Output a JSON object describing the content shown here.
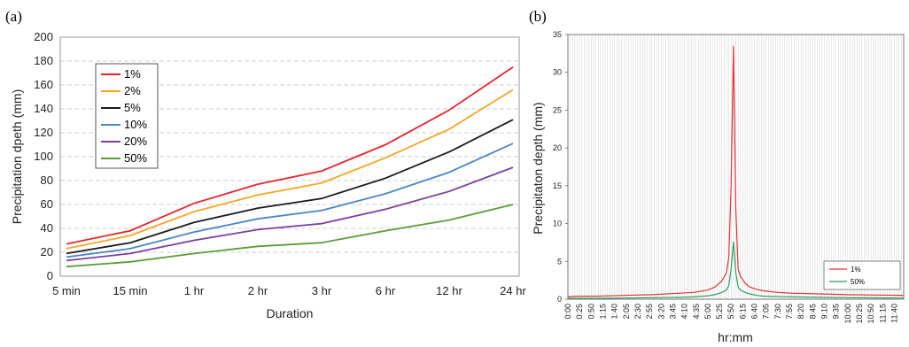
{
  "chart_data": [
    {
      "panel_label": "(a)",
      "type": "line",
      "xlabel": "Duration",
      "ylabel": "Precipitation dpeth (mm)",
      "categories": [
        "5 min",
        "15 min",
        "1 hr",
        "2 hr",
        "3 hr",
        "6 hr",
        "12 hr",
        "24 hr"
      ],
      "ylim": [
        0,
        200
      ],
      "yticks": [
        0,
        20,
        40,
        60,
        80,
        100,
        120,
        140,
        160,
        180,
        200
      ],
      "grid": true,
      "legend_position": "top-left",
      "series": [
        {
          "name": "1%",
          "color": "#e8242a",
          "values": [
            27,
            38,
            61,
            77,
            88,
            110,
            139,
            175
          ]
        },
        {
          "name": "2%",
          "color": "#f5a623",
          "values": [
            23,
            34,
            54,
            68,
            78,
            99,
            123,
            156
          ]
        },
        {
          "name": "5%",
          "color": "#1a1a1a",
          "values": [
            19,
            28,
            45,
            57,
            65,
            82,
            104,
            131
          ]
        },
        {
          "name": "10%",
          "color": "#4a86c8",
          "values": [
            16,
            23,
            37,
            48,
            55,
            69,
            87,
            111
          ]
        },
        {
          "name": "20%",
          "color": "#7b3fa0",
          "values": [
            13,
            19,
            30,
            39,
            44,
            56,
            71,
            91
          ]
        },
        {
          "name": "50%",
          "color": "#5a9e3a",
          "values": [
            8,
            12,
            19,
            25,
            28,
            38,
            47,
            60
          ]
        }
      ]
    },
    {
      "panel_label": "(b)",
      "type": "line",
      "xlabel": "hr:mm",
      "ylabel": "Precipitaton depth (mm)",
      "ylim": [
        0,
        35
      ],
      "yticks": [
        0,
        5,
        10,
        15,
        20,
        25,
        30,
        35
      ],
      "xlim_minutes": [
        0,
        720
      ],
      "x_tick_labels": [
        "0:00",
        "0:25",
        "0:50",
        "1:15",
        "1:40",
        "2:05",
        "2:30",
        "2:55",
        "3:20",
        "3:45",
        "4:10",
        "4:35",
        "5:00",
        "5:25",
        "5:50",
        "6:15",
        "6:40",
        "7:05",
        "7:30",
        "7:55",
        "8:20",
        "8:45",
        "9:10",
        "9:35",
        "10:00",
        "10:25",
        "10:50",
        "11:15",
        "11:40"
      ],
      "grid": true,
      "legend_position": "bottom-right",
      "series": [
        {
          "name": "1%",
          "color": "#e83030",
          "x_minutes": [
            0,
            20,
            60,
            120,
            180,
            240,
            270,
            300,
            315,
            330,
            340,
            345,
            350,
            355,
            360,
            365,
            370,
            375,
            380,
            390,
            405,
            420,
            450,
            480,
            540,
            600,
            660,
            720
          ],
          "values": [
            0.3,
            0.4,
            0.4,
            0.5,
            0.6,
            0.8,
            0.9,
            1.2,
            1.6,
            2.4,
            3.5,
            5.5,
            15.0,
            33.5,
            12.0,
            4.0,
            3.0,
            2.6,
            2.1,
            1.6,
            1.3,
            1.1,
            0.9,
            0.8,
            0.7,
            0.6,
            0.55,
            0.5
          ]
        },
        {
          "name": "50%",
          "color": "#22a35a",
          "x_minutes": [
            0,
            60,
            120,
            180,
            240,
            270,
            300,
            315,
            330,
            340,
            345,
            350,
            355,
            360,
            365,
            370,
            380,
            390,
            405,
            420,
            480,
            540,
            600,
            660,
            720
          ],
          "values": [
            0.1,
            0.1,
            0.15,
            0.2,
            0.25,
            0.3,
            0.45,
            0.6,
            0.9,
            1.2,
            1.8,
            4.0,
            7.6,
            3.5,
            1.6,
            1.2,
            0.9,
            0.7,
            0.5,
            0.4,
            0.3,
            0.25,
            0.2,
            0.18,
            0.15
          ]
        }
      ]
    }
  ]
}
